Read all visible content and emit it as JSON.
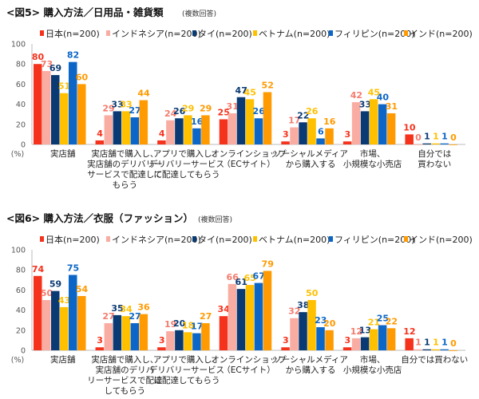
{
  "colors": [
    "#f5321c",
    "#f9aca2",
    "#0a3a73",
    "#ffc000",
    "#0b66c8",
    "#ff9a00"
  ],
  "chart_data": [
    {
      "type": "bar",
      "title": "<図5> 購入方法／日用品・雑貨類",
      "subtitle": "(複数回答)",
      "ylabel": "(%)",
      "ylim": [
        0,
        100
      ],
      "yticks": [
        0,
        20,
        40,
        60,
        80,
        100
      ],
      "grid": false,
      "legend": "top",
      "categories": [
        [
          "実店舗"
        ],
        [
          "実店舗で購入し、",
          "実店舗のデリバリー",
          "サービスで配達して",
          "もらう"
        ],
        [
          "アプリで購入し、",
          "デリバリーサービス",
          "に配達してもらう"
        ],
        [
          "オンラインショップ",
          "（ECサイト）"
        ],
        [
          "ソーシャルメディア",
          "から購入する"
        ],
        [
          "市場、",
          "小規模な小売店"
        ],
        [
          "自分では",
          "買わない"
        ]
      ],
      "series": [
        {
          "name": "日本(n=200)",
          "values": [
            80,
            4,
            4,
            25,
            3,
            3,
            10
          ]
        },
        {
          "name": "インドネシア(n=200)",
          "values": [
            73,
            29,
            24,
            31,
            17,
            42,
            0
          ]
        },
        {
          "name": "タイ(n=200)",
          "values": [
            69,
            33,
            26,
            47,
            22,
            33,
            1
          ]
        },
        {
          "name": "ベトナム(n=200)",
          "values": [
            51,
            33,
            29,
            45,
            26,
            45,
            1
          ]
        },
        {
          "name": "フィリピン(n=200)",
          "values": [
            82,
            27,
            16,
            26,
            6,
            40,
            1
          ]
        },
        {
          "name": "インド(n=200)",
          "values": [
            60,
            44,
            29,
            52,
            16,
            31,
            0
          ]
        }
      ]
    },
    {
      "type": "bar",
      "title": "<図6> 購入方法／衣服（ファッション）",
      "subtitle": "(複数回答)",
      "ylabel": "(%)",
      "ylim": [
        0,
        100
      ],
      "yticks": [
        0,
        20,
        40,
        60,
        80,
        100
      ],
      "grid": false,
      "legend": "top",
      "categories": [
        [
          "実店舗"
        ],
        [
          "実店舗で購入し、",
          "実店舗のデリバ",
          "リーサービスで配達",
          "してもらう"
        ],
        [
          "アプリで購入し、",
          "デリバリーサービス",
          "に配達してもらう"
        ],
        [
          "オンラインショップ",
          "（ECサイト）"
        ],
        [
          "ソーシャルメディア",
          "から購入する"
        ],
        [
          "市場、",
          "小規模な小売店"
        ],
        [
          "自分では買わない"
        ]
      ],
      "series": [
        {
          "name": "日本(n=200)",
          "values": [
            74,
            3,
            3,
            34,
            3,
            3,
            12
          ]
        },
        {
          "name": "インドネシア(n=200)",
          "values": [
            50,
            27,
            19,
            66,
            32,
            12,
            1
          ]
        },
        {
          "name": "タイ(n=200)",
          "values": [
            59,
            35,
            20,
            61,
            38,
            13,
            1
          ]
        },
        {
          "name": "ベトナム(n=200)",
          "values": [
            43,
            34,
            18,
            65,
            50,
            21,
            1
          ]
        },
        {
          "name": "フィリピン(n=200)",
          "values": [
            75,
            27,
            17,
            67,
            23,
            25,
            1
          ]
        },
        {
          "name": "インド(n=200)",
          "values": [
            54,
            36,
            27,
            79,
            20,
            22,
            0
          ]
        }
      ]
    }
  ]
}
